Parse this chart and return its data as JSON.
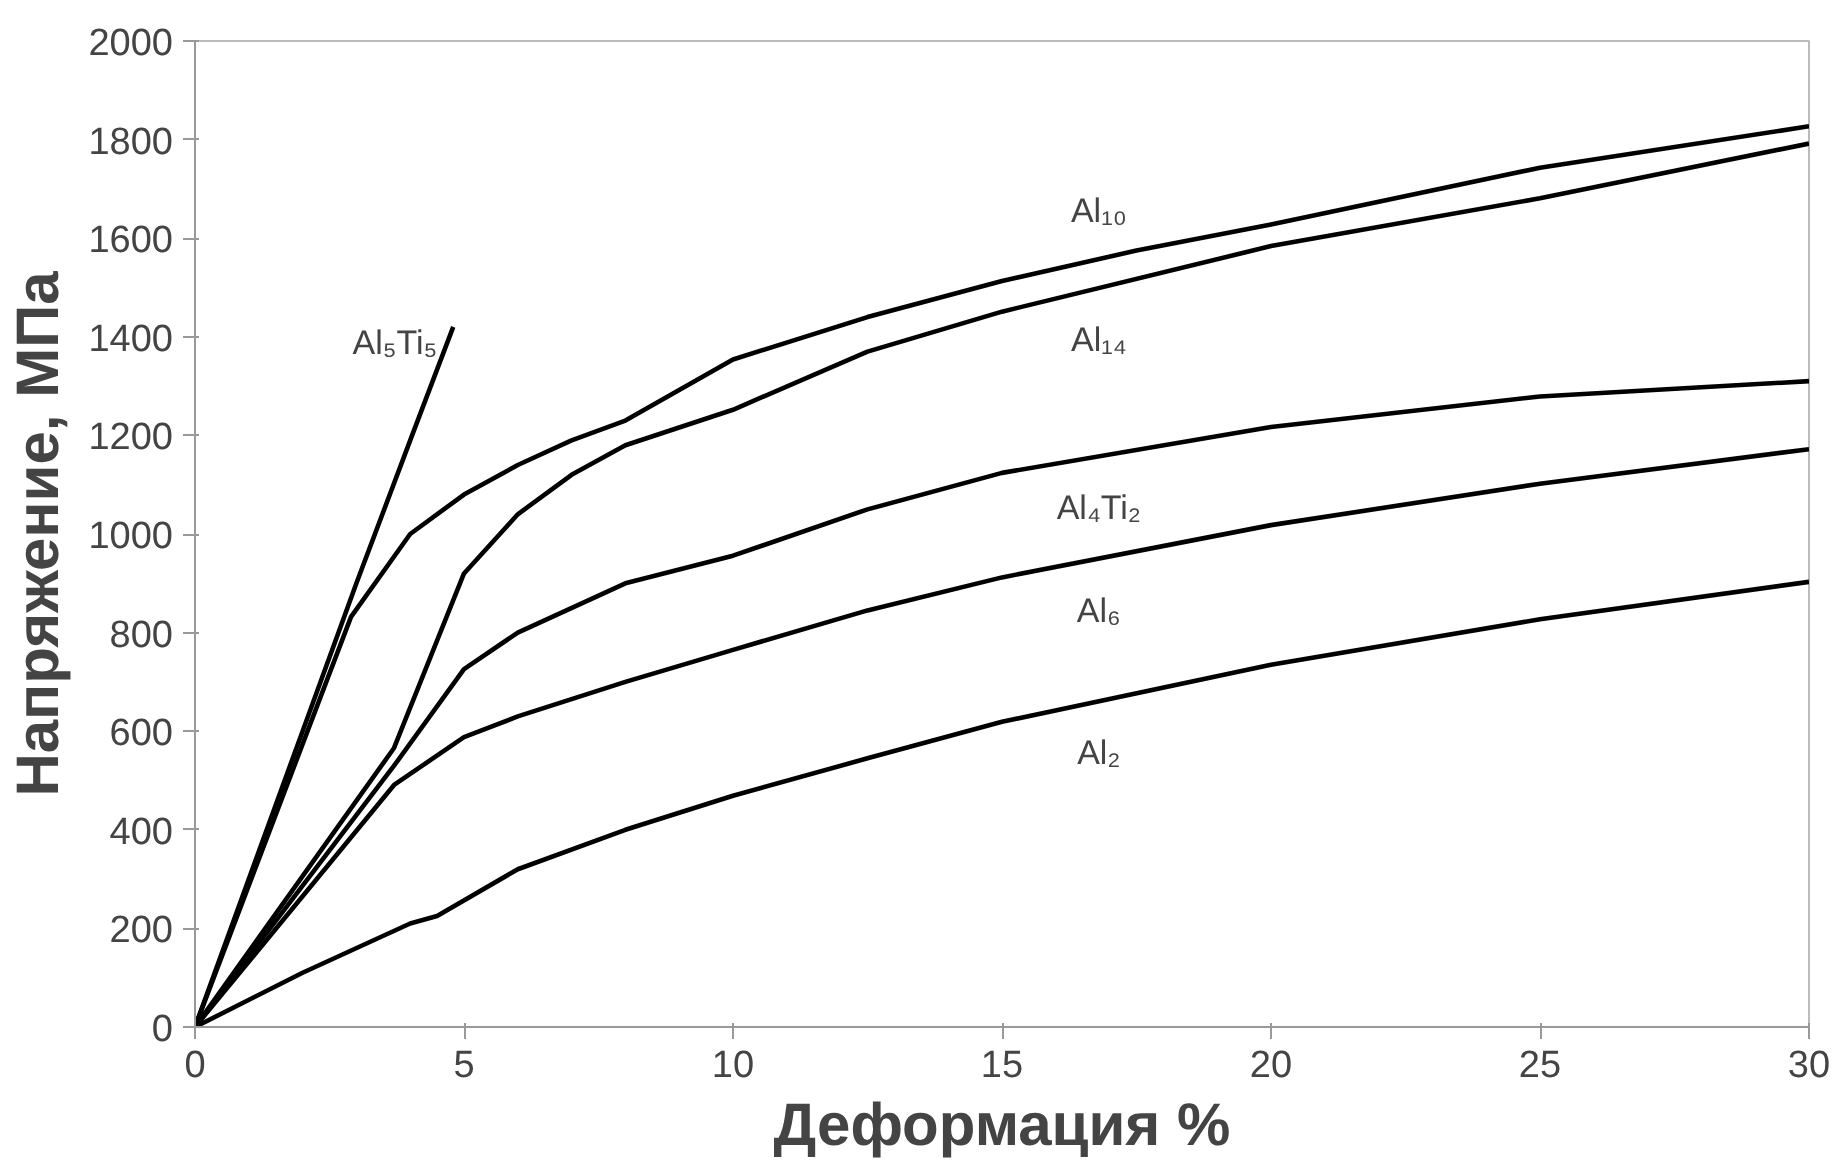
{
  "chart_data": {
    "type": "line",
    "xlabel": "Деформация %",
    "ylabel": "Напряжение, МПа",
    "xlim": [
      0,
      30
    ],
    "xticks": [
      0,
      5,
      10,
      15,
      20,
      25,
      30
    ],
    "ylim": [
      0,
      2000
    ],
    "yticks": [
      0,
      200,
      400,
      600,
      800,
      1000,
      1200,
      1400,
      1600,
      1800,
      2000
    ],
    "grid": false,
    "legend": false,
    "marker": "none",
    "line_style": "solid",
    "series": [
      {
        "name": "Al₅Ti₅",
        "color": "#000000",
        "x": [
          0,
          2,
          3,
          4,
          4.8
        ],
        "values": [
          0,
          600,
          900,
          1190,
          1420
        ]
      },
      {
        "name": "Al₁₀",
        "color": "#000000",
        "x": [
          0,
          2.9,
          4,
          5,
          6,
          7,
          8,
          10,
          12.5,
          15,
          17.5,
          20,
          25,
          30
        ],
        "values": [
          0,
          832,
          1000,
          1080,
          1140,
          1190,
          1230,
          1354,
          1440,
          1513,
          1575,
          1628,
          1743,
          1827
        ]
      },
      {
        "name": "Al₁₄",
        "color": "#000000",
        "x": [
          0,
          3.7,
          5,
          6,
          7,
          8,
          10,
          12.5,
          15,
          20,
          25,
          30
        ],
        "values": [
          0,
          566,
          920,
          1040,
          1120,
          1180,
          1252,
          1370,
          1451,
          1584,
          1681,
          1792
        ]
      },
      {
        "name": "Al₄Ti₂",
        "color": "#000000",
        "x": [
          0,
          3.7,
          5,
          6,
          8,
          10,
          12.5,
          15,
          20,
          25,
          30
        ],
        "values": [
          0,
          530,
          726,
          800,
          900,
          956,
          1050,
          1124,
          1217,
          1279,
          1310
        ]
      },
      {
        "name": "Al₆",
        "color": "#000000",
        "x": [
          0,
          3.7,
          5,
          6,
          8,
          10,
          12.5,
          15,
          20,
          25,
          30
        ],
        "values": [
          0,
          491,
          588,
          630,
          700,
          765,
          845,
          912,
          1018,
          1102,
          1172
        ]
      },
      {
        "name": "Al₂",
        "color": "#000000",
        "x": [
          0,
          2,
          4,
          4.5,
          6,
          8,
          10,
          12.5,
          15,
          20,
          25,
          30
        ],
        "values": [
          0,
          110,
          210,
          225,
          320,
          400,
          469,
          545,
          619,
          735,
          827,
          903
        ]
      }
    ]
  }
}
